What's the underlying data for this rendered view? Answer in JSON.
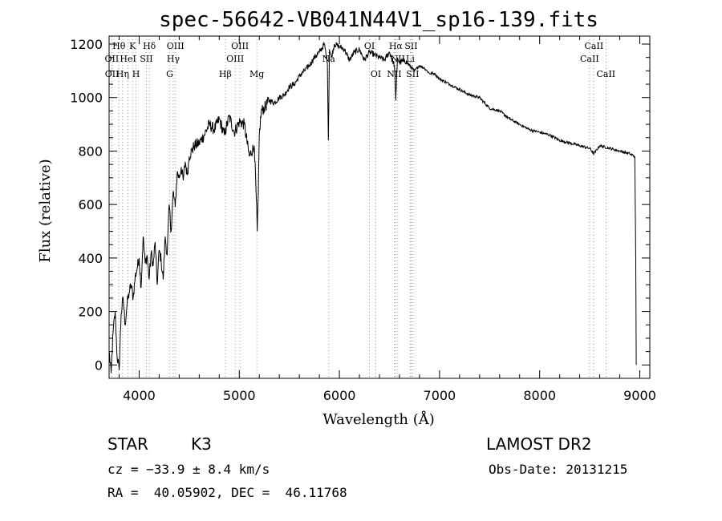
{
  "chart_data": {
    "type": "line",
    "title": "spec-56642-VB041N44V1_sp16-139.fits",
    "xlabel": "Wavelength (Å)",
    "ylabel": "Flux (relative)",
    "xlim": [
      3700,
      9100
    ],
    "ylim": [
      -50,
      1230
    ],
    "xticks": [
      4000,
      5000,
      6000,
      7000,
      8000,
      9000
    ],
    "yticks": [
      0,
      200,
      400,
      600,
      800,
      1000,
      1200
    ],
    "grid": false,
    "series": [
      {
        "x": [
          3700,
          3720,
          3740,
          3760,
          3780,
          3800,
          3820,
          3840,
          3860,
          3880,
          3900,
          3920,
          3940,
          3960,
          3980,
          4000,
          4020,
          4040,
          4060,
          4080,
          4100,
          4120,
          4140,
          4160,
          4180,
          4200,
          4220,
          4240,
          4260,
          4280,
          4300,
          4320,
          4340,
          4360,
          4380,
          4400,
          4420,
          4440,
          4460,
          4480,
          4500,
          4550,
          4600,
          4650,
          4700,
          4750,
          4800,
          4850,
          4900,
          4950,
          5000,
          5050,
          5100,
          5150,
          5170,
          5180,
          5190,
          5200,
          5220,
          5250,
          5300,
          5350,
          5400,
          5450,
          5500,
          5550,
          5600,
          5650,
          5700,
          5750,
          5800,
          5850,
          5880,
          5890,
          5900,
          5920,
          5950,
          6000,
          6050,
          6100,
          6150,
          6200,
          6250,
          6300,
          6350,
          6400,
          6450,
          6500,
          6550,
          6563,
          6580,
          6600,
          6650,
          6700,
          6750,
          6800,
          6850,
          6900,
          6950,
          7000,
          7100,
          7200,
          7300,
          7400,
          7500,
          7600,
          7700,
          7800,
          7900,
          8000,
          8100,
          8200,
          8300,
          8400,
          8500,
          8542,
          8600,
          8700,
          8800,
          8900,
          8950,
          8960,
          8965
        ],
        "y": [
          50,
          -30,
          120,
          200,
          30,
          -20,
          190,
          250,
          150,
          230,
          270,
          300,
          250,
          330,
          360,
          400,
          290,
          480,
          380,
          410,
          320,
          420,
          370,
          460,
          300,
          430,
          390,
          320,
          480,
          410,
          600,
          500,
          650,
          590,
          720,
          700,
          740,
          690,
          760,
          710,
          780,
          820,
          830,
          860,
          900,
          880,
          920,
          860,
          930,
          870,
          910,
          900,
          780,
          820,
          620,
          500,
          640,
          860,
          950,
          960,
          990,
          980,
          1000,
          1010,
          1040,
          1050,
          1080,
          1100,
          1120,
          1150,
          1170,
          1200,
          1130,
          840,
          1180,
          1150,
          1200,
          1190,
          1180,
          1140,
          1170,
          1180,
          1140,
          1170,
          1160,
          1150,
          1140,
          1170,
          1120,
          990,
          1150,
          1130,
          1140,
          1120,
          1100,
          1120,
          1110,
          1090,
          1090,
          1070,
          1050,
          1030,
          1010,
          1000,
          960,
          950,
          920,
          900,
          880,
          870,
          860,
          840,
          830,
          820,
          810,
          790,
          820,
          810,
          800,
          790,
          780,
          400,
          0
        ]
      }
    ],
    "lines": [
      {
        "name": "Hθ",
        "x": 3798,
        "row": 0
      },
      {
        "name": "K",
        "x": 3934,
        "row": 0
      },
      {
        "name": "Hδ",
        "x": 4102,
        "row": 0
      },
      {
        "name": "OII",
        "x": 3727,
        "row": 1
      },
      {
        "name": "HeI",
        "x": 3889,
        "row": 1
      },
      {
        "name": "SII",
        "x": 4072,
        "row": 1
      },
      {
        "name": "OII",
        "x": 3729,
        "row": 2
      },
      {
        "name": "Hη",
        "x": 3835,
        "row": 2
      },
      {
        "name": "H",
        "x": 3969,
        "row": 2
      },
      {
        "name": "OIII",
        "x": 4363,
        "row": 0
      },
      {
        "name": "Hγ",
        "x": 4341,
        "row": 1
      },
      {
        "name": "G",
        "x": 4305,
        "row": 2
      },
      {
        "name": "OIII",
        "x": 5007,
        "row": 0
      },
      {
        "name": "OIII",
        "x": 4959,
        "row": 1
      },
      {
        "name": "Hβ",
        "x": 4861,
        "row": 2
      },
      {
        "name": "Mg",
        "x": 5175,
        "row": 2
      },
      {
        "name": "Na",
        "x": 5893,
        "row": 1
      },
      {
        "name": "OI",
        "x": 6300,
        "row": 0
      },
      {
        "name": "OI",
        "x": 6364,
        "row": 2
      },
      {
        "name": "Hα",
        "x": 6563,
        "row": 0
      },
      {
        "name": "SII",
        "x": 6716,
        "row": 0
      },
      {
        "name": "NII",
        "x": 6583,
        "row": 1
      },
      {
        "name": "Li",
        "x": 6708,
        "row": 1
      },
      {
        "name": "NII",
        "x": 6548,
        "row": 2
      },
      {
        "name": "SII",
        "x": 6731,
        "row": 2
      },
      {
        "name": "CaII",
        "x": 8542,
        "row": 0
      },
      {
        "name": "CaII",
        "x": 8498,
        "row": 1
      },
      {
        "name": "CaII",
        "x": 8662,
        "row": 2
      }
    ]
  },
  "info": {
    "object_class": "STAR",
    "subclass": "K3",
    "survey": "LAMOST DR2",
    "cz": "cz = −33.9 ± 8.4 km/s",
    "obs_date": "Obs-Date: 20131215",
    "coords": "RA =  40.05902, DEC =  46.11768"
  }
}
